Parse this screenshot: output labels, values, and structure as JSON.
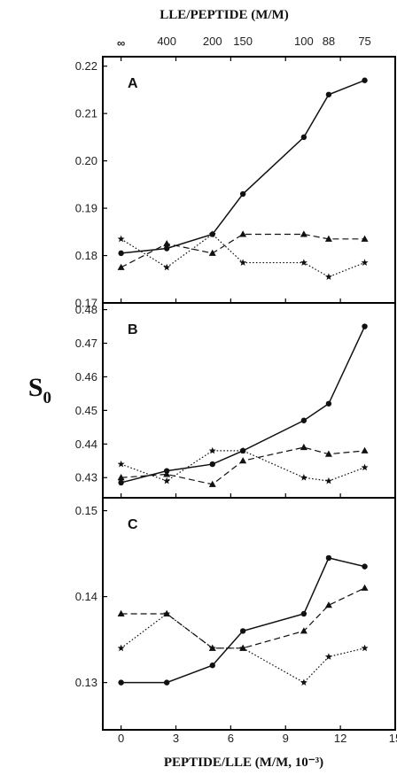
{
  "figure": {
    "ylabel": "S",
    "ylabel_sub": "0",
    "xlabel": "PEPTIDE/LLE (M/M, 10⁻³)",
    "top_xlabel": "LLE/PEPTIDE (M/M)",
    "top_ticks": [
      {
        "label": "∞",
        "x": 0
      },
      {
        "label": "400",
        "x": 2.5
      },
      {
        "label": "200",
        "x": 5
      },
      {
        "label": "150",
        "x": 6.667
      },
      {
        "label": "100",
        "x": 10
      },
      {
        "label": "88",
        "x": 11.36
      },
      {
        "label": "75",
        "x": 13.33
      }
    ],
    "x_range": [
      -1,
      15
    ],
    "x_ticks": [
      0,
      3,
      6,
      9,
      12,
      15
    ],
    "colors": {
      "line": "#111111",
      "frame": "#000000"
    }
  },
  "chart_data": [
    {
      "type": "line",
      "panel": "A",
      "ylim": [
        0.17,
        0.222
      ],
      "y_ticks": [
        0.17,
        0.18,
        0.19,
        0.2,
        0.21,
        0.22
      ],
      "y_tick_labels": [
        "0.17",
        "0.18",
        "0.19",
        "0.20",
        "0.21",
        "0.22"
      ],
      "x": [
        0,
        2.5,
        5,
        6.667,
        10,
        11.36,
        13.33
      ],
      "series": [
        {
          "marker": "circle",
          "style": "solid",
          "values": [
            0.1805,
            0.1815,
            0.1845,
            0.193,
            0.205,
            0.214,
            0.217
          ]
        },
        {
          "marker": "triangle",
          "style": "dashed",
          "values": [
            0.1775,
            0.1825,
            0.1805,
            0.1845,
            0.1845,
            0.1835,
            0.1835
          ]
        },
        {
          "marker": "star",
          "style": "dotted",
          "values": [
            0.1835,
            0.1775,
            0.1845,
            0.1785,
            0.1785,
            0.1755,
            0.1785
          ]
        }
      ]
    },
    {
      "type": "line",
      "panel": "B",
      "ylim": [
        0.424,
        0.482
      ],
      "y_ticks": [
        0.43,
        0.44,
        0.45,
        0.46,
        0.47,
        0.48
      ],
      "y_tick_labels": [
        "0.43",
        "0.44",
        "0.45",
        "0.46",
        "0.47",
        "0.48"
      ],
      "x": [
        0,
        2.5,
        5,
        6.667,
        10,
        11.36,
        13.33
      ],
      "series": [
        {
          "marker": "circle",
          "style": "solid",
          "values": [
            0.4285,
            0.432,
            0.434,
            0.438,
            0.447,
            0.452,
            0.475
          ]
        },
        {
          "marker": "triangle",
          "style": "dashed",
          "values": [
            0.43,
            0.431,
            0.428,
            0.435,
            0.439,
            0.437,
            0.438
          ]
        },
        {
          "marker": "star",
          "style": "dotted",
          "values": [
            0.434,
            0.429,
            0.438,
            0.438,
            0.43,
            0.429,
            0.433
          ]
        }
      ]
    },
    {
      "type": "line",
      "panel": "C",
      "ylim": [
        0.1245,
        0.1515
      ],
      "y_ticks": [
        0.13,
        0.14,
        0.15
      ],
      "y_tick_labels": [
        "0.13",
        "0.14",
        "0.15"
      ],
      "x": [
        0,
        2.5,
        5,
        6.667,
        10,
        11.36,
        13.33
      ],
      "series": [
        {
          "marker": "circle",
          "style": "solid",
          "values": [
            0.13,
            0.13,
            0.132,
            0.136,
            0.138,
            0.1445,
            0.1435
          ]
        },
        {
          "marker": "triangle",
          "style": "dashed",
          "values": [
            0.138,
            0.138,
            0.134,
            0.134,
            0.136,
            0.139,
            0.141
          ]
        },
        {
          "marker": "star",
          "style": "dotted",
          "values": [
            0.134,
            0.138,
            0.134,
            0.134,
            0.13,
            0.133,
            0.134
          ]
        }
      ]
    }
  ]
}
